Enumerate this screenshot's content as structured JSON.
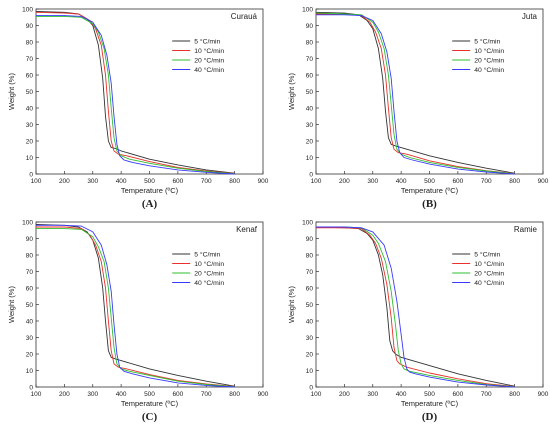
{
  "figure": {
    "background": "#ffffff",
    "axis_color": "#333333"
  },
  "chart_data": [
    {
      "type": "line",
      "panel_label": "(A)",
      "title": "Curauá",
      "xlabel": "Temperature (ºC)",
      "ylabel": "Weight (%)",
      "xlim": [
        100,
        900
      ],
      "ylim": [
        0,
        100
      ],
      "xticks": [
        100,
        200,
        300,
        400,
        500,
        600,
        700,
        800,
        900
      ],
      "yticks": [
        0,
        10,
        20,
        30,
        40,
        50,
        60,
        70,
        80,
        90,
        100
      ],
      "grid": false,
      "legend_position": "top-right",
      "series": [
        {
          "name": "5 °C/min",
          "color": "#333333",
          "x": [
            100,
            200,
            250,
            280,
            300,
            320,
            335,
            345,
            355,
            365,
            380,
            400,
            500,
            600,
            700,
            800
          ],
          "y": [
            98.5,
            98,
            97,
            94,
            90,
            78,
            58,
            35,
            20,
            16,
            15.5,
            14,
            9,
            5.5,
            2.5,
            0.5
          ]
        },
        {
          "name": "10 °C/min",
          "color": "#e8312a",
          "x": [
            100,
            200,
            250,
            290,
            310,
            330,
            345,
            355,
            365,
            375,
            390,
            420,
            500,
            600,
            700,
            800
          ],
          "y": [
            98,
            97.5,
            97,
            93,
            88,
            78,
            60,
            38,
            20,
            14,
            12,
            11,
            7.5,
            4,
            1.8,
            0.3
          ]
        },
        {
          "name": "20 °C/min",
          "color": "#2fbf2f",
          "x": [
            100,
            200,
            260,
            300,
            320,
            340,
            355,
            365,
            375,
            385,
            400,
            430,
            500,
            600,
            700,
            800
          ],
          "y": [
            95.5,
            95.5,
            95,
            91,
            86,
            76,
            60,
            40,
            22,
            14,
            11,
            9,
            6.5,
            3.5,
            1.5,
            0.2
          ]
        },
        {
          "name": "40 °C/min",
          "color": "#3a3aff",
          "x": [
            100,
            200,
            260,
            300,
            330,
            350,
            365,
            375,
            385,
            395,
            410,
            440,
            500,
            600,
            700,
            800
          ],
          "y": [
            96,
            96,
            95.5,
            92,
            84,
            72,
            55,
            35,
            18,
            11,
            8.5,
            7,
            5,
            2.5,
            1,
            0
          ]
        }
      ]
    },
    {
      "type": "line",
      "panel_label": "(B)",
      "title": "Juta",
      "xlabel": "Temperature (ºC)",
      "ylabel": "Weight (%)",
      "xlim": [
        100,
        900
      ],
      "ylim": [
        0,
        100
      ],
      "xticks": [
        100,
        200,
        300,
        400,
        500,
        600,
        700,
        800,
        900
      ],
      "yticks": [
        0,
        10,
        20,
        30,
        40,
        50,
        60,
        70,
        80,
        90,
        100
      ],
      "grid": false,
      "legend_position": "top-right",
      "series": [
        {
          "name": "5 °C/min",
          "color": "#333333",
          "x": [
            100,
            200,
            250,
            280,
            300,
            320,
            335,
            345,
            355,
            365,
            380,
            400,
            500,
            600,
            700,
            800
          ],
          "y": [
            98,
            97.5,
            96.5,
            93,
            88,
            76,
            58,
            38,
            22,
            18,
            17,
            16,
            11,
            7,
            3.5,
            0.5
          ]
        },
        {
          "name": "10 °C/min",
          "color": "#e8312a",
          "x": [
            100,
            200,
            260,
            290,
            310,
            330,
            345,
            355,
            365,
            375,
            390,
            420,
            500,
            600,
            700,
            800
          ],
          "y": [
            97,
            97,
            96,
            92,
            86,
            76,
            60,
            40,
            22,
            15,
            13,
            12,
            8,
            4.5,
            2,
            0.3
          ]
        },
        {
          "name": "20 °C/min",
          "color": "#2fbf2f",
          "x": [
            100,
            200,
            260,
            300,
            320,
            340,
            355,
            365,
            375,
            385,
            400,
            430,
            500,
            600,
            700,
            800
          ],
          "y": [
            97.5,
            97,
            96.5,
            92,
            86,
            76,
            60,
            42,
            24,
            15,
            12,
            10,
            7,
            4,
            1.8,
            0.2
          ]
        },
        {
          "name": "40 °C/min",
          "color": "#3a3aff",
          "x": [
            100,
            200,
            260,
            300,
            330,
            350,
            365,
            375,
            385,
            395,
            410,
            440,
            500,
            600,
            700,
            800
          ],
          "y": [
            96.5,
            96.5,
            96,
            93,
            85,
            74,
            58,
            38,
            20,
            13,
            10,
            8.5,
            6,
            3,
            1.2,
            0
          ]
        }
      ]
    },
    {
      "type": "line",
      "panel_label": "(C)",
      "title": "Kenaf",
      "xlabel": "Temperature (ºC)",
      "ylabel": "Weight (%)",
      "xlim": [
        100,
        900
      ],
      "ylim": [
        0,
        100
      ],
      "xticks": [
        100,
        200,
        300,
        400,
        500,
        600,
        700,
        800,
        900
      ],
      "yticks": [
        0,
        10,
        20,
        30,
        40,
        50,
        60,
        70,
        80,
        90,
        100
      ],
      "grid": false,
      "legend_position": "top-right",
      "series": [
        {
          "name": "5 °C/min",
          "color": "#333333",
          "x": [
            100,
            200,
            250,
            280,
            300,
            320,
            335,
            345,
            355,
            365,
            380,
            400,
            500,
            600,
            700,
            800
          ],
          "y": [
            98.5,
            98,
            97,
            94,
            89,
            78,
            60,
            40,
            22,
            18,
            17,
            16,
            11,
            7,
            3.5,
            0.5
          ]
        },
        {
          "name": "10 °C/min",
          "color": "#e8312a",
          "x": [
            100,
            200,
            260,
            290,
            310,
            330,
            345,
            355,
            365,
            375,
            390,
            420,
            500,
            600,
            700,
            800
          ],
          "y": [
            97,
            97,
            96,
            92,
            86,
            76,
            60,
            40,
            22,
            14,
            12,
            11,
            7.5,
            4,
            1.8,
            0.3
          ]
        },
        {
          "name": "20 °C/min",
          "color": "#2fbf2f",
          "x": [
            100,
            200,
            260,
            300,
            320,
            340,
            355,
            365,
            375,
            385,
            400,
            430,
            500,
            600,
            700,
            800
          ],
          "y": [
            96,
            96,
            95.5,
            91,
            85,
            76,
            60,
            42,
            24,
            14,
            11,
            9.5,
            7,
            3.5,
            1.5,
            0.2
          ]
        },
        {
          "name": "40 °C/min",
          "color": "#3a3aff",
          "x": [
            100,
            200,
            260,
            300,
            330,
            350,
            365,
            375,
            385,
            395,
            410,
            440,
            500,
            600,
            700,
            800
          ],
          "y": [
            98,
            98,
            97.5,
            94,
            86,
            74,
            58,
            38,
            20,
            12,
            9.5,
            8,
            5.5,
            2.5,
            1,
            0
          ]
        }
      ]
    },
    {
      "type": "line",
      "panel_label": "(D)",
      "title": "Ramie",
      "xlabel": "Temperature (ºC)",
      "ylabel": "Weight (%)",
      "xlim": [
        100,
        900
      ],
      "ylim": [
        0,
        100
      ],
      "xticks": [
        100,
        200,
        300,
        400,
        500,
        600,
        700,
        800,
        900
      ],
      "yticks": [
        0,
        10,
        20,
        30,
        40,
        50,
        60,
        70,
        80,
        90,
        100
      ],
      "grid": false,
      "legend_position": "top-right",
      "series": [
        {
          "name": "5 °C/min",
          "color": "#333333",
          "x": [
            100,
            200,
            250,
            280,
            300,
            320,
            335,
            350,
            360,
            370,
            380,
            400,
            500,
            600,
            700,
            800
          ],
          "y": [
            97,
            96.5,
            96,
            93,
            89,
            80,
            68,
            48,
            28,
            22,
            20,
            18,
            13,
            8,
            4,
            0.5
          ]
        },
        {
          "name": "10 °C/min",
          "color": "#e8312a",
          "x": [
            100,
            200,
            260,
            290,
            310,
            330,
            350,
            365,
            375,
            385,
            395,
            420,
            500,
            600,
            700,
            800
          ],
          "y": [
            96.5,
            96.5,
            96,
            92,
            87,
            78,
            62,
            42,
            24,
            16,
            14,
            12,
            8.5,
            5,
            2,
            0.3
          ]
        },
        {
          "name": "20 °C/min",
          "color": "#2fbf2f",
          "x": [
            100,
            200,
            260,
            300,
            320,
            345,
            365,
            380,
            390,
            400,
            410,
            430,
            500,
            600,
            700,
            800
          ],
          "y": [
            97,
            97,
            96.5,
            92,
            87,
            76,
            58,
            38,
            22,
            14,
            11,
            9.5,
            7,
            4,
            1.5,
            0.2
          ]
        },
        {
          "name": "40 °C/min",
          "color": "#3a3aff",
          "x": [
            100,
            200,
            260,
            300,
            340,
            365,
            385,
            400,
            410,
            420,
            430,
            450,
            500,
            600,
            700,
            800
          ],
          "y": [
            97,
            97,
            96.5,
            94,
            86,
            72,
            52,
            32,
            18,
            11,
            9,
            8,
            6,
            3,
            1.2,
            0
          ]
        }
      ]
    }
  ]
}
